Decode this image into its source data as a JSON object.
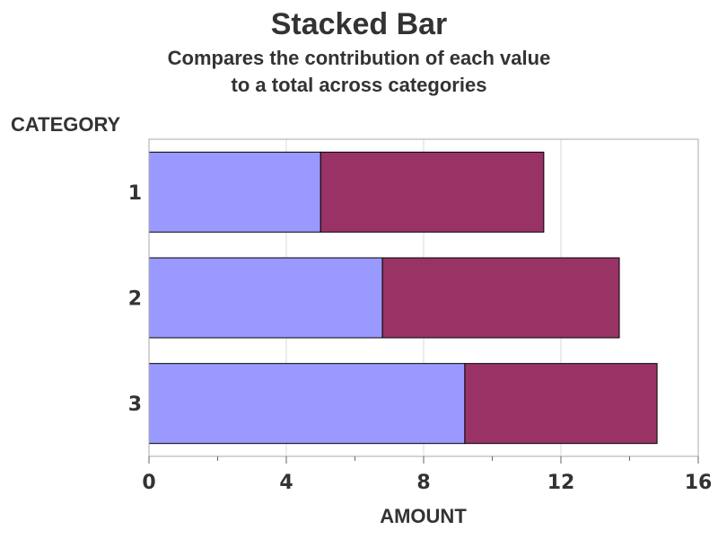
{
  "chart_data": {
    "type": "bar",
    "orientation": "horizontal",
    "stacked": true,
    "title": "Stacked Bar",
    "subtitle": [
      "Compares the contribution of each value",
      "to a total across categories"
    ],
    "ylabel": "CATEGORY",
    "xlabel": "AMOUNT",
    "categories": [
      "1",
      "2",
      "3"
    ],
    "series": [
      {
        "values": [
          5.0,
          6.8,
          9.2
        ],
        "color": "#9999ff"
      },
      {
        "values": [
          6.5,
          6.9,
          5.6
        ],
        "color": "#993366"
      }
    ],
    "xlim": [
      0,
      16
    ],
    "xticks": [
      "0",
      "4",
      "8",
      "12",
      "16"
    ],
    "grid": true,
    "gridline_color": "#d9d9d9",
    "frame_color": "#aaaaaa"
  }
}
